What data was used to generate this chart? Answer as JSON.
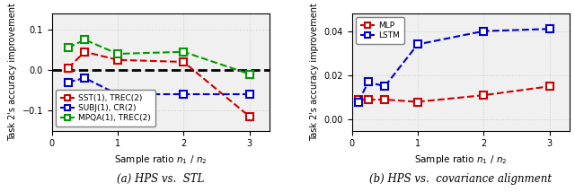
{
  "left": {
    "x": [
      0.25,
      0.5,
      1.0,
      2.0,
      3.0
    ],
    "sst_trec": [
      0.005,
      0.045,
      0.025,
      0.02,
      -0.115
    ],
    "subj_cr": [
      -0.03,
      -0.02,
      -0.06,
      -0.06,
      -0.06
    ],
    "mpqa_trec": [
      0.055,
      0.075,
      0.04,
      0.045,
      -0.01
    ],
    "ylim": [
      -0.15,
      0.14
    ],
    "yticks": [
      -0.1,
      0.0,
      0.1
    ],
    "xticks": [
      0,
      1,
      2,
      3
    ],
    "xlim": [
      0,
      3.3
    ],
    "xlabel": "Sample ratio $n_1$ / $n_2$",
    "ylabel": "Task 2's accuracy improvement",
    "caption": "(a) HPS vs.  STL",
    "legend": [
      "SST(1), TREC(2)",
      "SUBJ(1), CR(2)",
      "MPQA(1), TREC(2)"
    ],
    "colors": [
      "#cc0000",
      "#0000cc",
      "#009900"
    ]
  },
  "right": {
    "x": [
      0.1,
      0.25,
      0.5,
      1.0,
      2.0,
      3.0
    ],
    "mlp": [
      0.009,
      0.009,
      0.009,
      0.008,
      0.011,
      0.015
    ],
    "lstm": [
      0.008,
      0.017,
      0.015,
      0.034,
      0.04,
      0.041
    ],
    "ylim": [
      -0.005,
      0.048
    ],
    "yticks": [
      0.0,
      0.02,
      0.04
    ],
    "xticks": [
      0,
      1,
      2,
      3
    ],
    "xlim": [
      0,
      3.3
    ],
    "xlabel": "Sample ratio $n_1$ / $n_2$",
    "ylabel": "Task 2's accuracy improvement",
    "caption": "(b) HPS vs.  covariance alignment",
    "legend": [
      "MLP",
      "LSTM"
    ],
    "colors": [
      "#cc0000",
      "#0000cc"
    ]
  },
  "bg_color": "#f0f0f0",
  "grid_color": "#cccccc",
  "marker_size": 5.5,
  "line_width": 1.5,
  "tick_fontsize": 7,
  "label_fontsize": 7.5,
  "legend_fontsize": 6.5,
  "caption_fontsize": 8.5
}
